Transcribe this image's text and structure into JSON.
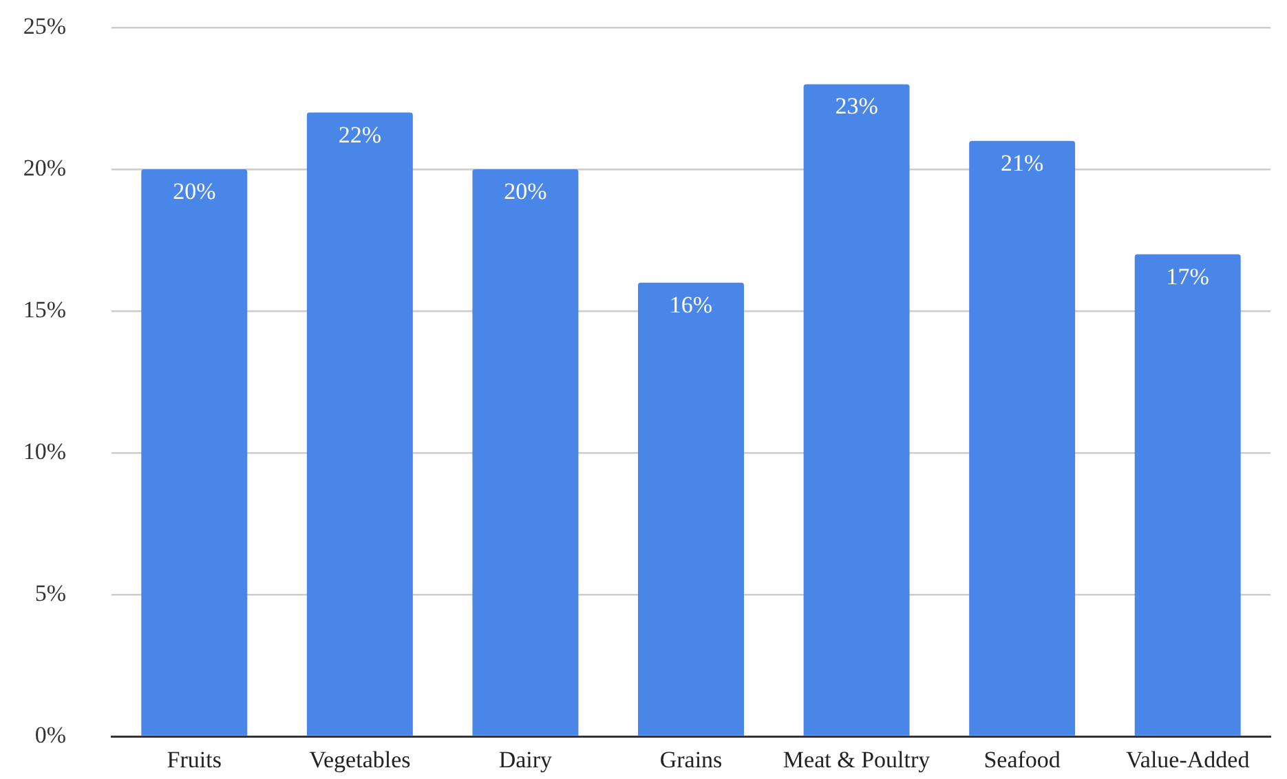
{
  "chart_data": {
    "type": "bar",
    "categories": [
      "Fruits",
      "Vegetables",
      "Dairy",
      "Grains",
      "Meat & Poultry",
      "Seafood",
      "Value-Added"
    ],
    "values": [
      20,
      22,
      20,
      16,
      23,
      21,
      17
    ],
    "value_labels": [
      "20%",
      "22%",
      "20%",
      "16%",
      "23%",
      "21%",
      "17%"
    ],
    "color": "#4a86e8",
    "ylim": [
      0,
      25
    ],
    "yticks": [
      {
        "value": 0,
        "label": "0%"
      },
      {
        "value": 5,
        "label": "5%"
      },
      {
        "value": 10,
        "label": "10%"
      },
      {
        "value": 15,
        "label": "15%"
      },
      {
        "value": 20,
        "label": "20%"
      },
      {
        "value": 25,
        "label": "25%"
      }
    ],
    "grid": "y"
  }
}
